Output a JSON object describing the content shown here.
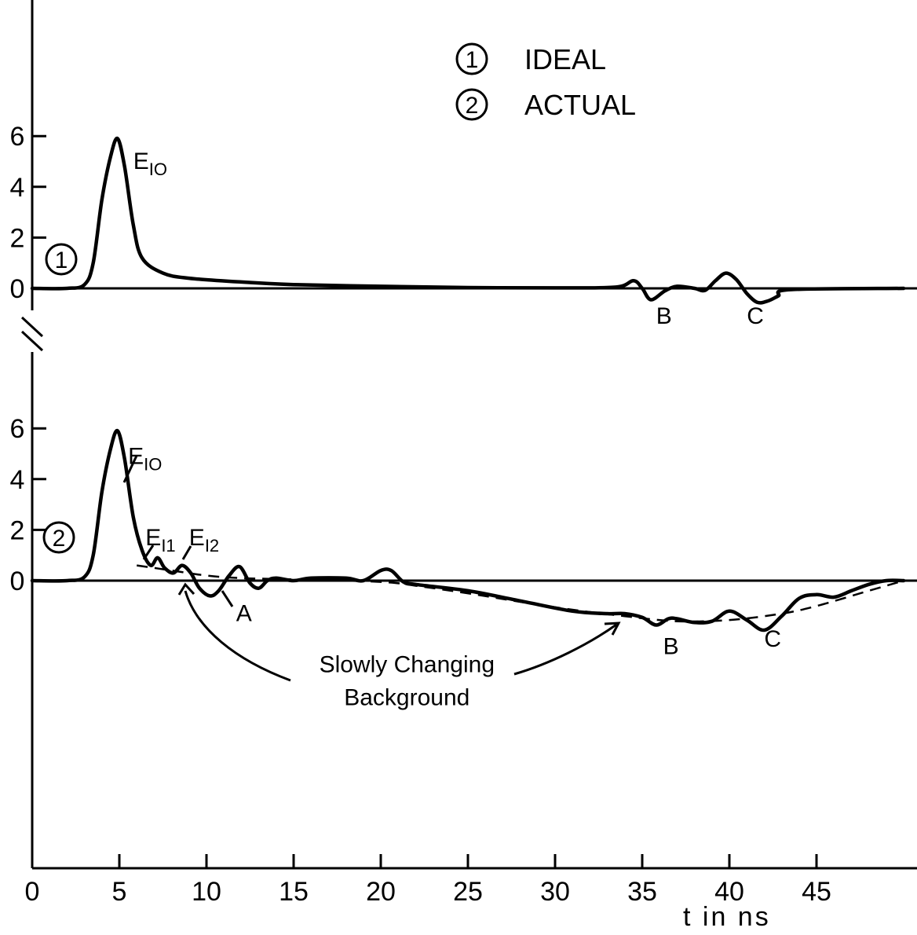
{
  "chart_data": {
    "type": "line",
    "x_tick_labels": [
      "0",
      "5",
      "10",
      "15",
      "20",
      "25",
      "30",
      "35",
      "40",
      "45"
    ],
    "x_label": "t in ns",
    "xlim": [
      0,
      50
    ],
    "legend": [
      {
        "marker": "1",
        "label": "IDEAL"
      },
      {
        "marker": "2",
        "label": "ACTUAL"
      }
    ],
    "panels": [
      {
        "marker": "1",
        "y_tick_labels": [
          "6",
          "4",
          "2",
          "0"
        ],
        "ylim": [
          -1.5,
          7
        ],
        "series": [
          {
            "x": [
              0,
              2,
              3,
              3.5,
              4,
              4.5,
              4.9,
              5.3,
              5.8,
              6.3,
              7.5,
              9,
              12,
              15,
              20,
              25,
              30,
              33.5,
              34.5,
              35,
              35.5,
              36.3,
              37,
              38,
              38.6,
              39.2,
              39.8,
              40.4,
              41,
              41.6,
              42.2,
              42.8,
              43.5,
              50
            ],
            "y": [
              0,
              0,
              0.15,
              1,
              3.5,
              5.2,
              5.9,
              4.8,
              2.5,
              1.2,
              0.6,
              0.4,
              0.25,
              0.15,
              0.08,
              0.03,
              0.02,
              0.05,
              0.3,
              0,
              -0.45,
              -0.1,
              0.08,
              0,
              -0.08,
              0.3,
              0.6,
              0.35,
              -0.2,
              -0.55,
              -0.5,
              -0.3,
              -0.05,
              0
            ]
          }
        ],
        "annotations": [
          {
            "text": "E",
            "sub": "IO",
            "x": 5.8,
            "y": 4.7
          },
          {
            "text": "B",
            "x": 35.8,
            "y": -1.4
          },
          {
            "text": "C",
            "x": 41,
            "y": -1.4
          }
        ]
      },
      {
        "marker": "2",
        "y_tick_labels": [
          "6",
          "4",
          "2",
          "0"
        ],
        "ylim": [
          -11.5,
          7
        ],
        "series": [
          {
            "x": [
              0,
              2,
              3,
              3.5,
              4,
              4.5,
              4.9,
              5.3,
              5.8,
              6.3,
              6.8,
              7.2,
              7.6,
              8.1,
              8.6,
              9.1,
              9.6,
              10.2,
              10.7,
              11.3,
              11.9,
              12.5,
              13,
              13.5,
              14,
              15,
              16,
              18,
              19,
              20,
              20.6,
              21.3,
              22,
              25,
              28,
              31,
              33,
              34,
              35,
              35.8,
              36.5,
              37,
              38,
              39,
              40,
              41,
              42,
              43,
              44,
              45,
              46,
              47,
              48,
              49,
              50
            ],
            "y": [
              0,
              0,
              0.15,
              1,
              3.5,
              5.2,
              5.9,
              4.8,
              2.5,
              1.2,
              0.6,
              0.9,
              0.5,
              0.3,
              0.6,
              0.3,
              -0.3,
              -0.6,
              -0.4,
              0.2,
              0.55,
              -0.1,
              -0.3,
              0,
              0.1,
              0,
              0.1,
              0.1,
              0,
              0.4,
              0.4,
              -0.05,
              -0.15,
              -0.4,
              -0.8,
              -1.2,
              -1.3,
              -1.3,
              -1.45,
              -1.75,
              -1.5,
              -1.5,
              -1.65,
              -1.6,
              -1.2,
              -1.55,
              -1.95,
              -1.4,
              -0.7,
              -0.55,
              -0.65,
              -0.4,
              -0.15,
              0,
              0
            ]
          }
        ],
        "background": {
          "x": [
            6,
            8,
            10,
            12,
            15,
            20,
            22,
            25,
            30,
            34,
            37,
            40,
            43,
            45,
            48,
            50
          ],
          "y": [
            0.6,
            0.4,
            0.2,
            0.1,
            0.05,
            -0.05,
            -0.2,
            -0.5,
            -1.05,
            -1.4,
            -1.6,
            -1.55,
            -1.3,
            -1.0,
            -0.4,
            0
          ]
        },
        "annotations": [
          {
            "text": "E",
            "sub": "IO",
            "x": 5.5,
            "y": 4.6
          },
          {
            "text": "E",
            "sub": "I1",
            "x": 6.5,
            "y": 1.4
          },
          {
            "text": "E",
            "sub": "I2",
            "x": 9,
            "y": 1.4
          },
          {
            "text": "A",
            "x": 11.7,
            "y": -1.6
          },
          {
            "text": "B",
            "x": 36.2,
            "y": -2.9
          },
          {
            "text": "C",
            "x": 42,
            "y": -2.6
          },
          {
            "text": "Slowly Changing",
            "x": 21.5,
            "y": -3.6
          },
          {
            "text": "Background",
            "x": 21.5,
            "y": -4.9
          }
        ]
      }
    ]
  }
}
